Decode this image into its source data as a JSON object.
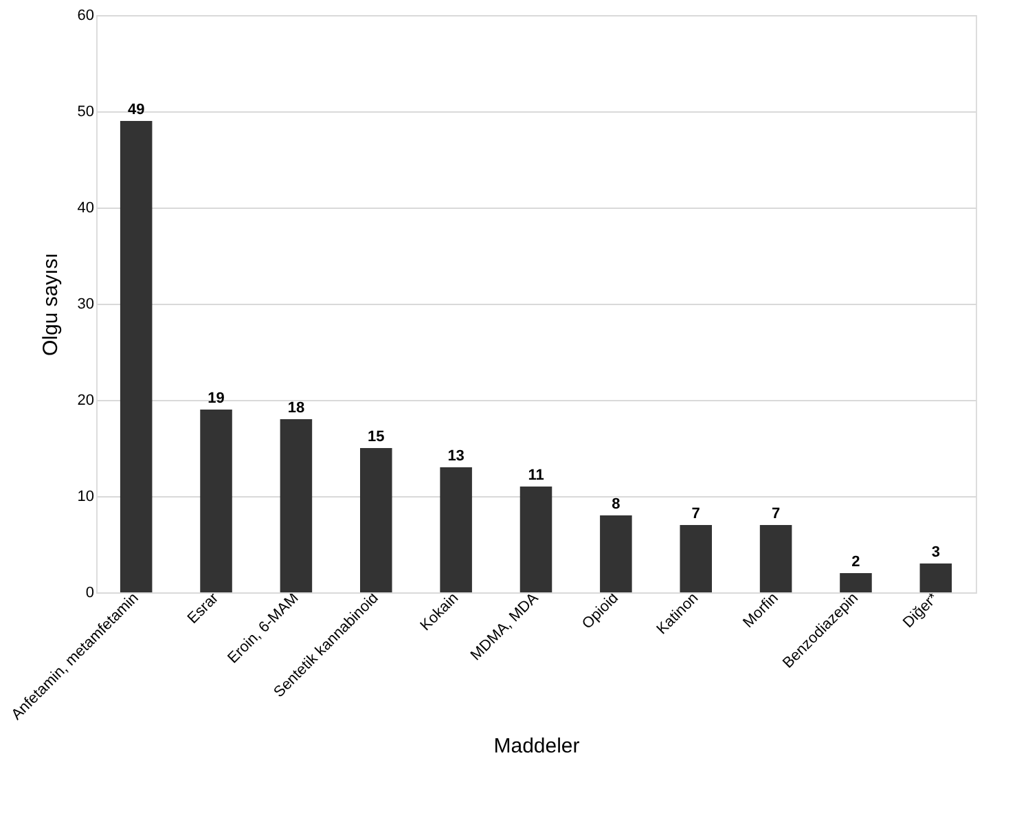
{
  "chart_data": {
    "type": "bar",
    "xlabel": "Maddeler",
    "ylabel": "Olgu sayısı",
    "categories": [
      "Anfetamin, metamfetamin",
      "Esrar",
      "Eroin, 6-MAM",
      "Sentetik kannabinoid",
      "Kokain",
      "MDMA, MDA",
      "Opioid",
      "Katinon",
      "Morfin",
      "Benzodiazepin",
      "Diğer*"
    ],
    "values": [
      49,
      19,
      18,
      15,
      13,
      11,
      8,
      7,
      7,
      2,
      3
    ],
    "color": "#333333",
    "ylim": [
      0,
      60
    ],
    "yticks": [
      0,
      10,
      20,
      30,
      40,
      50,
      60
    ],
    "grid": "y",
    "data_labels": true
  }
}
